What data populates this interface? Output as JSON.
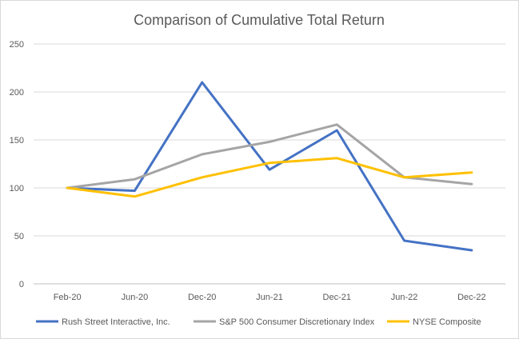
{
  "chart_data": {
    "type": "line",
    "title": "Comparison of Cumulative Total Return",
    "categories": [
      "Feb-20",
      "Jun-20",
      "Dec-20",
      "Jun-21",
      "Dec-21",
      "Jun-22",
      "Dec-22"
    ],
    "ylim": [
      0,
      250
    ],
    "yticks": [
      "0",
      "50",
      "100",
      "150",
      "200",
      "250"
    ],
    "grid": true,
    "legend_position": "bottom",
    "series": [
      {
        "name": "Rush Street Interactive, Inc.",
        "color": "#4472c4",
        "values": [
          100,
          97,
          210,
          119,
          160,
          45,
          35
        ]
      },
      {
        "name": "S&P 500 Consumer Discretionary Index",
        "color": "#a5a5a5",
        "values": [
          100,
          109,
          135,
          148,
          166,
          111,
          104
        ]
      },
      {
        "name": "NYSE Composite",
        "color": "#ffc000",
        "values": [
          100,
          91,
          111,
          126,
          131,
          111,
          116
        ]
      }
    ]
  }
}
